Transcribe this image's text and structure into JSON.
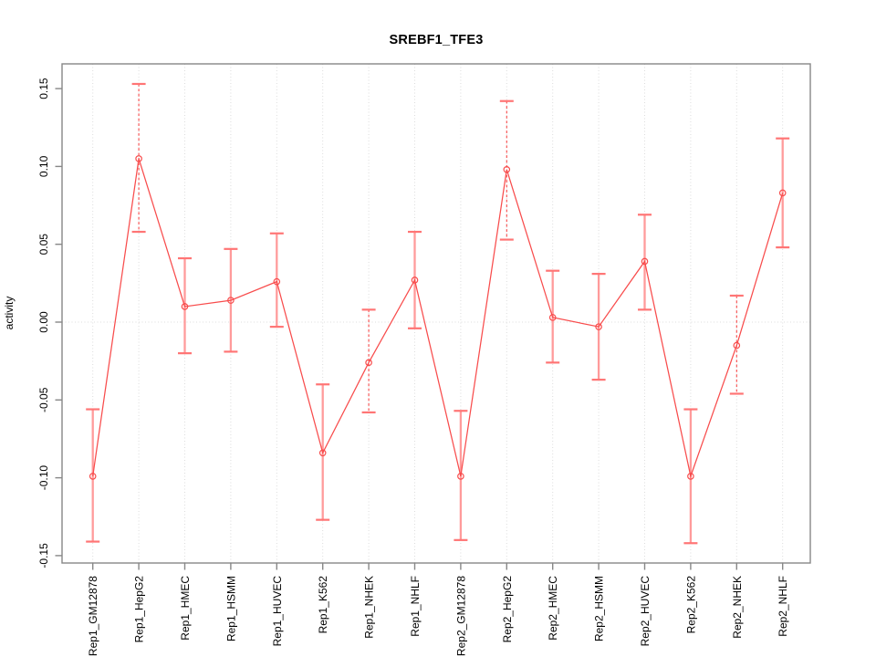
{
  "chart_data": {
    "type": "line",
    "title": "SREBF1_TFE3",
    "ylabel": "activity",
    "xlabel": "",
    "ylim": [
      -0.15,
      0.15
    ],
    "yticks": [
      0.15,
      0.1,
      0.05,
      0.0,
      -0.05,
      -0.1,
      -0.15
    ],
    "ytick_labels": [
      "0.15",
      "0.10",
      "0.05",
      "0.00",
      "-0.05",
      "-0.10",
      "-0.15"
    ],
    "grid": "dotted vertical gridline at each category; dotted horizontal line at y=0",
    "legend": "none",
    "categories": [
      "Rep1_GM12878",
      "Rep1_HepG2",
      "Rep1_HMEC",
      "Rep1_HSMM",
      "Rep1_HUVEC",
      "Rep1_K562",
      "Rep1_NHEK",
      "Rep1_NHLF",
      "Rep2_GM12878",
      "Rep2_HepG2",
      "Rep2_HMEC",
      "Rep2_HSMM",
      "Rep2_HUVEC",
      "Rep2_K562",
      "Rep2_NHEK",
      "Rep2_NHLF"
    ],
    "series": [
      {
        "name": "activity",
        "marker": "open-circle",
        "values": [
          -0.099,
          0.105,
          0.01,
          0.014,
          0.026,
          -0.084,
          -0.026,
          0.027,
          -0.099,
          0.098,
          0.003,
          -0.003,
          0.039,
          -0.099,
          -0.015,
          0.083
        ],
        "error_high": [
          -0.056,
          0.153,
          0.041,
          0.047,
          0.057,
          -0.04,
          0.008,
          0.058,
          -0.057,
          0.142,
          0.033,
          0.031,
          0.069,
          -0.056,
          0.017,
          0.118
        ],
        "error_low": [
          -0.141,
          0.058,
          -0.02,
          -0.019,
          -0.003,
          -0.127,
          -0.058,
          -0.004,
          -0.14,
          0.053,
          -0.026,
          -0.037,
          0.008,
          -0.142,
          -0.046,
          0.048
        ],
        "error_bar_styles": [
          "solid",
          "dashed",
          "solid",
          "solid",
          "solid",
          "solid",
          "dashed",
          "solid",
          "solid",
          "dashed",
          "solid",
          "solid",
          "solid",
          "solid",
          "dashed",
          "solid"
        ]
      }
    ],
    "colors": {
      "line": "#f84c4c",
      "marker": "#f84c4c",
      "error_bar_solid": "#ff9b9b",
      "error_bar_dashed": "#f84848",
      "error_bar_cap": "#ff7575",
      "grid": "#dcdcdc",
      "axis": "#878787",
      "text": "#000000",
      "background": "#ffffff"
    }
  }
}
